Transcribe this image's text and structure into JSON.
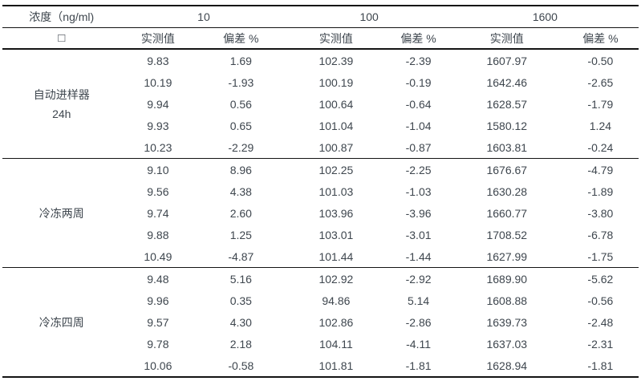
{
  "table": {
    "header_row1": {
      "stub": "浓度（ng/ml)",
      "concentrations": [
        "10",
        "100",
        "1600"
      ]
    },
    "header_row2": {
      "stub": "□",
      "measured_label": "实测值",
      "deviation_label": "偏差 %"
    },
    "groups": [
      {
        "label_lines": [
          "自动进样器",
          "24h"
        ],
        "rows": [
          [
            "9.83",
            "1.69",
            "102.39",
            "-2.39",
            "1607.97",
            "-0.50"
          ],
          [
            "10.19",
            "-1.93",
            "100.19",
            "-0.19",
            "1642.46",
            "-2.65"
          ],
          [
            "9.94",
            "0.56",
            "100.64",
            "-0.64",
            "1628.57",
            "-1.79"
          ],
          [
            "9.93",
            "0.65",
            "101.04",
            "-1.04",
            "1580.12",
            "1.24"
          ],
          [
            "10.23",
            "-2.29",
            "100.87",
            "-0.87",
            "1603.81",
            "-0.24"
          ]
        ]
      },
      {
        "label_lines": [
          "冷冻两周"
        ],
        "rows": [
          [
            "9.10",
            "8.96",
            "102.25",
            "-2.25",
            "1676.67",
            "-4.79"
          ],
          [
            "9.56",
            "4.38",
            "101.03",
            "-1.03",
            "1630.28",
            "-1.89"
          ],
          [
            "9.74",
            "2.60",
            "103.96",
            "-3.96",
            "1660.77",
            "-3.80"
          ],
          [
            "9.88",
            "1.25",
            "103.01",
            "-3.01",
            "1708.52",
            "-6.78"
          ],
          [
            "10.49",
            "-4.87",
            "101.44",
            "-1.44",
            "1627.99",
            "-1.75"
          ]
        ]
      },
      {
        "label_lines": [
          "冷冻四周"
        ],
        "rows": [
          [
            "9.48",
            "5.16",
            "102.92",
            "-2.92",
            "1689.90",
            "-5.62"
          ],
          [
            "9.96",
            "0.35",
            "94.86",
            "5.14",
            "1608.88",
            "-0.56"
          ],
          [
            "9.57",
            "4.30",
            "102.86",
            "-2.86",
            "1639.73",
            "-2.48"
          ],
          [
            "9.78",
            "2.18",
            "104.11",
            "-4.11",
            "1637.03",
            "-2.31"
          ],
          [
            "10.06",
            "-0.58",
            "101.81",
            "-1.81",
            "1628.94",
            "-1.81"
          ]
        ]
      }
    ]
  },
  "colors": {
    "text": "#3e464e",
    "rule": "#141414",
    "background": "#ffffff"
  }
}
